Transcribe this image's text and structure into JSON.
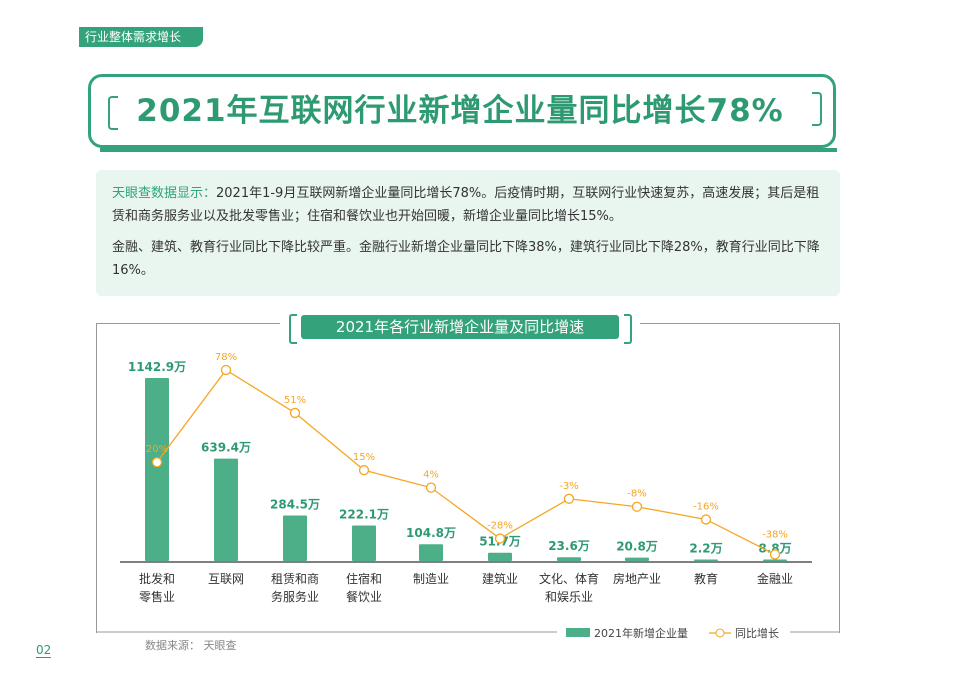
{
  "section_tag": "行业整体需求增长",
  "headline": "2021年互联网行业新增企业量同比增长78%",
  "info": {
    "source_label": "天眼查数据显示：",
    "p1": "2021年1-9月互联网新增企业量同比增长78%。后疫情时期，互联网行业快速复苏，高速发展；其后是租赁和商务服务业以及批发零售业；住宿和餐饮业也开始回暖，新增企业量同比增长15%。",
    "p2": "金融、建筑、教育行业同比下降比较严重。金融行业新增企业量同比下降38%，建筑行业同比下降28%，教育行业同比下降16%。"
  },
  "chart_data": {
    "type": "bar+line",
    "title": "2021年各行业新增企业量及同比增速",
    "categories": [
      "批发和\n零售业",
      "互联网",
      "租赁和商\n务服务业",
      "住宿和\n餐饮业",
      "制造业",
      "建筑业",
      "文化、体育\n和娱乐业",
      "房地产业",
      "教育",
      "金融业"
    ],
    "series": [
      {
        "name": "2021年新增企业量",
        "type": "bar",
        "unit": "万",
        "values": [
          1142.9,
          639.4,
          284.5,
          222.1,
          104.8,
          51.7,
          23.6,
          20.8,
          2.2,
          8.8
        ],
        "labels": [
          "1142.9万",
          "639.4万",
          "284.5万",
          "222.1万",
          "104.8万",
          "51.7万",
          "23.6万",
          "20.8万",
          "2.2万",
          "8.8万"
        ],
        "color": "#4caf87"
      },
      {
        "name": "同比增长",
        "type": "line",
        "unit": "%",
        "values": [
          20,
          78,
          51,
          15,
          4,
          -28,
          -3,
          -8,
          -16,
          -38
        ],
        "labels": [
          "20%",
          "78%",
          "51%",
          "15%",
          "4%",
          "-28%",
          "-3%",
          "-8%",
          "-16%",
          "-38%"
        ],
        "color": "#f5a623"
      }
    ],
    "legend": "bottom-right"
  },
  "source": "数据来源：  天眼查",
  "page_number": "02"
}
